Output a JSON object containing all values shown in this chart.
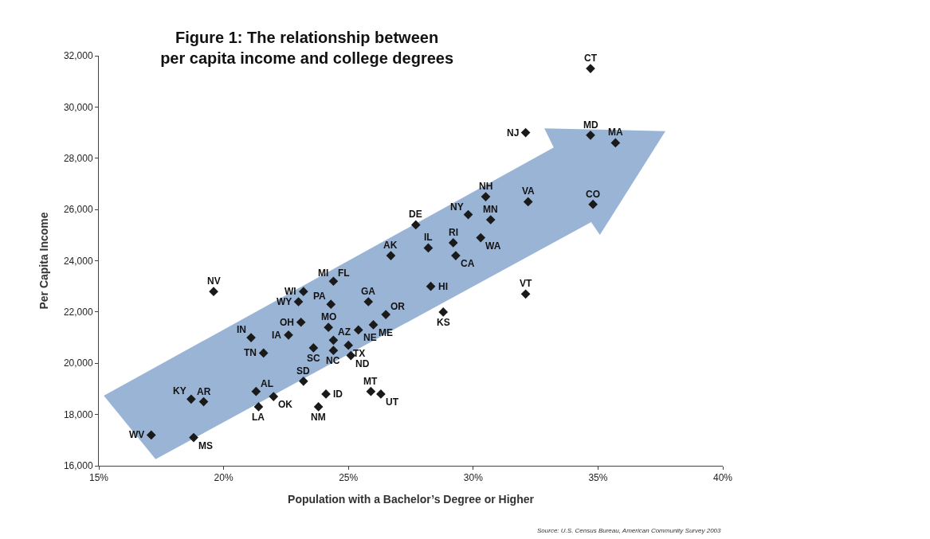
{
  "chart_data": {
    "type": "scatter",
    "title": "Figure 1: The relationship between\nper capita income and college degrees",
    "xlabel": "Population with a Bachelor’s Degree or Higher",
    "ylabel": "Per Capita Income",
    "x": [
      19.6,
      23.2,
      23.0,
      23.1,
      21.1,
      22.6,
      21.6,
      23.6,
      23.2,
      21.3,
      22.0,
      21.4,
      23.8,
      18.7,
      19.2,
      17.1,
      18.8,
      24.4,
      null,
      24.3,
      25.8,
      26.5,
      26.0,
      24.2,
      24.4,
      25.4,
      24.4,
      25.0,
      25.1,
      25.9,
      26.3,
      24.1,
      28.8,
      28.3,
      29.3,
      32.1,
      34.7,
      35.7,
      34.8,
      32.2,
      30.5,
      29.8,
      30.7,
      27.7,
      28.2,
      29.2,
      30.3,
      26.7,
      32.1,
      34.7
    ],
    "values": [
      22800,
      22800,
      22400,
      21600,
      21000,
      21100,
      20400,
      20600,
      19300,
      18900,
      18700,
      18300,
      18300,
      18600,
      18500,
      17200,
      17100,
      23200,
      null,
      22300,
      22400,
      21900,
      21500,
      21400,
      20900,
      21300,
      20500,
      20700,
      20300,
      18900,
      18800,
      18800,
      22000,
      23000,
      24200,
      29000,
      28900,
      28600,
      26200,
      26300,
      26500,
      25800,
      25600,
      25400,
      24500,
      24700,
      24900,
      24200,
      22700,
      31500
    ],
    "color": "#1a1a1a",
    "marker": "diamond",
    "xlim": [
      15,
      40
    ],
    "xticks": [
      {
        "value": 15,
        "label": "15%"
      },
      {
        "value": 20,
        "label": "20%"
      },
      {
        "value": 25,
        "label": "25%"
      },
      {
        "value": 30,
        "label": "30%"
      },
      {
        "value": 35,
        "label": "35%"
      },
      {
        "value": 40,
        "label": "40%"
      }
    ],
    "ylim": [
      16000,
      32000
    ],
    "yticks": [
      {
        "value": 16000,
        "label": "16,000"
      },
      {
        "value": 18000,
        "label": "18,000"
      },
      {
        "value": 20000,
        "label": "20,000"
      },
      {
        "value": 22000,
        "label": "22,000"
      },
      {
        "value": 24000,
        "label": "24,000"
      },
      {
        "value": 26000,
        "label": "26,000"
      },
      {
        "value": 28000,
        "label": "28,000"
      },
      {
        "value": 30000,
        "label": "30,000"
      },
      {
        "value": 32000,
        "label": "32,000"
      }
    ],
    "annotations": [
      {
        "text": "NV",
        "x": 19.6,
        "y": 22800
      },
      {
        "text": "WI",
        "x": 23.2,
        "y": 22800
      },
      {
        "text": "WY",
        "x": 23.0,
        "y": 22400
      },
      {
        "text": "OH",
        "x": 23.1,
        "y": 21600
      },
      {
        "text": "IN",
        "x": 21.1,
        "y": 21000
      },
      {
        "text": "IA",
        "x": 22.6,
        "y": 21100
      },
      {
        "text": "TN",
        "x": 21.6,
        "y": 20400
      },
      {
        "text": "SC",
        "x": 23.6,
        "y": 20600
      },
      {
        "text": "SD",
        "x": 23.2,
        "y": 19300
      },
      {
        "text": "AL",
        "x": 21.3,
        "y": 18900
      },
      {
        "text": "OK",
        "x": 22.0,
        "y": 18700
      },
      {
        "text": "LA",
        "x": 21.4,
        "y": 18300
      },
      {
        "text": "NM",
        "x": 23.8,
        "y": 18300
      },
      {
        "text": "KY",
        "x": 18.7,
        "y": 18600
      },
      {
        "text": "AR",
        "x": 19.2,
        "y": 18500
      },
      {
        "text": "WV",
        "x": 17.1,
        "y": 17200
      },
      {
        "text": "MS",
        "x": 18.8,
        "y": 17100
      },
      {
        "text": "MI",
        "x": 24.4,
        "y": 23200
      },
      {
        "text": "FL",
        "x": 24.4,
        "y": 23200
      },
      {
        "text": "PA",
        "x": 24.3,
        "y": 22300
      },
      {
        "text": "GA",
        "x": 25.8,
        "y": 22400
      },
      {
        "text": "OR",
        "x": 26.5,
        "y": 21900
      },
      {
        "text": "ME",
        "x": 26.0,
        "y": 21500
      },
      {
        "text": "MO",
        "x": 24.2,
        "y": 21400
      },
      {
        "text": "AZ",
        "x": 24.4,
        "y": 20900
      },
      {
        "text": "NE",
        "x": 25.4,
        "y": 21300
      },
      {
        "text": "NC",
        "x": 24.4,
        "y": 20500
      },
      {
        "text": "TX",
        "x": 25.0,
        "y": 20700
      },
      {
        "text": "ND",
        "x": 25.1,
        "y": 20300
      },
      {
        "text": "MT",
        "x": 25.9,
        "y": 18900
      },
      {
        "text": "UT",
        "x": 26.3,
        "y": 18800
      },
      {
        "text": "ID",
        "x": 24.1,
        "y": 18800
      },
      {
        "text": "KS",
        "x": 28.8,
        "y": 22000
      },
      {
        "text": "HI",
        "x": 28.3,
        "y": 23000
      },
      {
        "text": "CA",
        "x": 29.3,
        "y": 24200
      },
      {
        "text": "NJ",
        "x": 32.1,
        "y": 29000
      },
      {
        "text": "MD",
        "x": 34.7,
        "y": 28900
      },
      {
        "text": "MA",
        "x": 35.7,
        "y": 28600
      },
      {
        "text": "CO",
        "x": 34.8,
        "y": 26200
      },
      {
        "text": "VA",
        "x": 32.2,
        "y": 26300
      },
      {
        "text": "NH",
        "x": 30.5,
        "y": 26500
      },
      {
        "text": "NY",
        "x": 29.8,
        "y": 25800
      },
      {
        "text": "MN",
        "x": 30.7,
        "y": 25600
      },
      {
        "text": "DE",
        "x": 27.7,
        "y": 25400
      },
      {
        "text": "IL",
        "x": 28.2,
        "y": 24500
      },
      {
        "text": "RI",
        "x": 29.2,
        "y": 24700
      },
      {
        "text": "WA",
        "x": 30.3,
        "y": 24900
      },
      {
        "text": "AK",
        "x": 26.7,
        "y": 24200
      },
      {
        "text": "VT",
        "x": 32.1,
        "y": 22700
      },
      {
        "text": "CT",
        "x": 34.7,
        "y": 31500
      },
      "Source: U.S. Census Bureau, American Community Survey 2003"
    ]
  }
}
